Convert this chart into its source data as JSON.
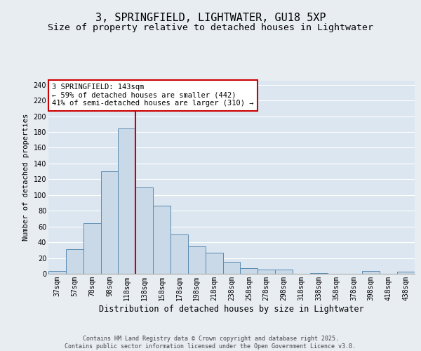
{
  "title1": "3, SPRINGFIELD, LIGHTWATER, GU18 5XP",
  "title2": "Size of property relative to detached houses in Lightwater",
  "xlabel": "Distribution of detached houses by size in Lightwater",
  "ylabel": "Number of detached properties",
  "categories": [
    "37sqm",
    "57sqm",
    "78sqm",
    "98sqm",
    "118sqm",
    "138sqm",
    "158sqm",
    "178sqm",
    "198sqm",
    "218sqm",
    "238sqm",
    "258sqm",
    "278sqm",
    "298sqm",
    "318sqm",
    "338sqm",
    "358sqm",
    "378sqm",
    "398sqm",
    "418sqm",
    "438sqm"
  ],
  "values": [
    4,
    31,
    64,
    130,
    184,
    110,
    86,
    50,
    35,
    27,
    15,
    7,
    5,
    5,
    0,
    1,
    0,
    0,
    4,
    0,
    3
  ],
  "bar_color": "#c9d9e8",
  "bar_edge_color": "#5a8ab0",
  "vline_color": "#cc0000",
  "annotation_text": "3 SPRINGFIELD: 143sqm\n← 59% of detached houses are smaller (442)\n41% of semi-detached houses are larger (310) →",
  "annotation_box_color": "#ffffff",
  "annotation_box_edge": "#cc0000",
  "ylim": [
    0,
    245
  ],
  "yticks": [
    0,
    20,
    40,
    60,
    80,
    100,
    120,
    140,
    160,
    180,
    200,
    220,
    240
  ],
  "background_color": "#dce6f0",
  "fig_background_color": "#e8edf2",
  "footer": "Contains HM Land Registry data © Crown copyright and database right 2025.\nContains public sector information licensed under the Open Government Licence v3.0.",
  "title_fontsize": 11,
  "subtitle_fontsize": 9.5,
  "tick_fontsize": 7,
  "annotation_fontsize": 7.5,
  "xlabel_fontsize": 8.5,
  "ylabel_fontsize": 7.5
}
